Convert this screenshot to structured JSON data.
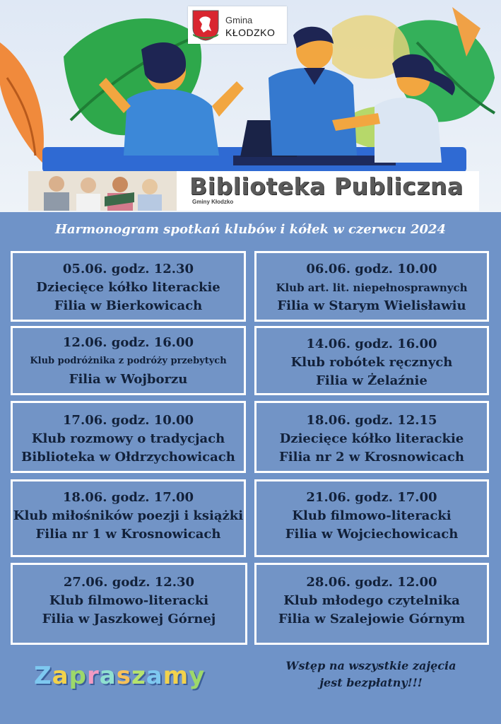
{
  "header": {
    "logo_line1": "Gmina",
    "logo_line2": "KŁODZKO",
    "banner_title": "Biblioteka Publiczna",
    "banner_subtitle": "Gminy Kłodzko"
  },
  "title": "Harmonogram spotkań klubów i kółek w czerwcu 2024",
  "events": [
    {
      "date": "05.06. godz. 12.30",
      "name": "Dziecięce kółko literackie",
      "place": "Filia w Bierkowicach"
    },
    {
      "date": "06.06. godz. 10.00",
      "name": "Klub art. lit. niepełnosprawnych",
      "place": "Filia w Starym Wielisławiu"
    },
    {
      "date": "12.06. godz. 16.00",
      "name": "Klub podróżnika z podróży przebytych",
      "place": "Filia w Wojborzu"
    },
    {
      "date": "14.06. godz. 16.00",
      "name": "Klub robótek ręcznych",
      "place": "Filia w Żelaźnie"
    },
    {
      "date": "17.06. godz. 10.00",
      "name": "Klub rozmowy o tradycjach",
      "place": "Biblioteka w Ołdrzychowicach"
    },
    {
      "date": "18.06. godz. 12.15",
      "name": "Dziecięce kółko literackie",
      "place": "Filia nr 2 w Krosnowicach"
    },
    {
      "date": "18.06. godz. 17.00",
      "name": "Klub miłośników poezji i książki",
      "place": "Filia nr 1 w Krosnowicach"
    },
    {
      "date": "21.06. godz. 17.00",
      "name": "Klub filmowo-literacki",
      "place": "Filia w Wojciechowicach"
    },
    {
      "date": "27.06. godz. 12.30",
      "name": "Klub filmowo-literacki",
      "place": "Filia w Jaszkowej Górnej"
    },
    {
      "date": "28.06. godz. 12.00",
      "name": "Klub młodego czytelnika",
      "place": "Filia w Szalejowie Górnym"
    }
  ],
  "footer": {
    "invite": "Zapraszamy",
    "invite_colors": [
      "#7ec8f0",
      "#f2d24c",
      "#9dd86a",
      "#f29ac2",
      "#8fe0d0",
      "#f6c15a",
      "#b6e36e",
      "#7ec8f0",
      "#f2d24c",
      "#9dd86a"
    ],
    "free_line1": "Wstęp na wszystkie zajęcia",
    "free_line2": "jest bezpłatny!!!"
  },
  "colors": {
    "background": "#6f93c8",
    "box_fill": "#7294c6",
    "box_border": "#ffffff",
    "text_dark": "#12213a"
  }
}
